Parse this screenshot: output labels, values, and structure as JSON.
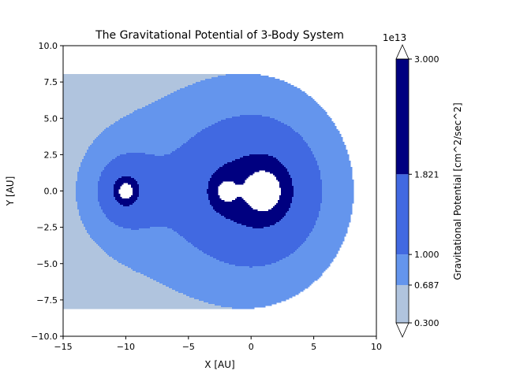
{
  "chart_data": {
    "type": "contour",
    "title": "The Gravitational Potential of 3-Body System",
    "xlabel": "X [AU]",
    "ylabel": "Y [AU]",
    "xlim": [
      -15,
      10
    ],
    "ylim": [
      -10,
      10
    ],
    "x_ticks": [
      -15,
      -10,
      -5,
      0,
      5,
      10
    ],
    "y_ticks": [
      -10.0,
      -7.5,
      -5.0,
      -2.5,
      0.0,
      2.5,
      5.0,
      7.5,
      10.0
    ],
    "x_tick_labels": [
      "−15",
      "−10",
      "−5",
      "0",
      "5",
      "10"
    ],
    "y_tick_labels": [
      "−10.0",
      "−7.5",
      "−5.0",
      "−2.5",
      "0.0",
      "2.5",
      "5.0",
      "7.5",
      "10.0"
    ],
    "grid": false,
    "bodies": [
      {
        "x": -10.0,
        "y": 0.0,
        "mass": 0.4
      },
      {
        "x": -2.0,
        "y": 0.0,
        "mass": 0.35
      },
      {
        "x": 1.0,
        "y": 0.0,
        "mass": 1.0
      }
    ],
    "potential_scale": 3.5,
    "levels": [
      0.3,
      0.687,
      1.0,
      1.821,
      3.0
    ],
    "level_colors": [
      "#b0c4de",
      "#6495ed",
      "#4169e1",
      "#000080"
    ],
    "over_color": "#ffffff",
    "under_color": "#ffffff",
    "colorbar": {
      "label": "Gravitational Potential [cm^2/sec^2]",
      "offset_text": "1e13",
      "tick_labels": [
        "0.300",
        "0.687",
        "1.000",
        "1.821",
        "3.000"
      ],
      "extend": "both"
    }
  }
}
